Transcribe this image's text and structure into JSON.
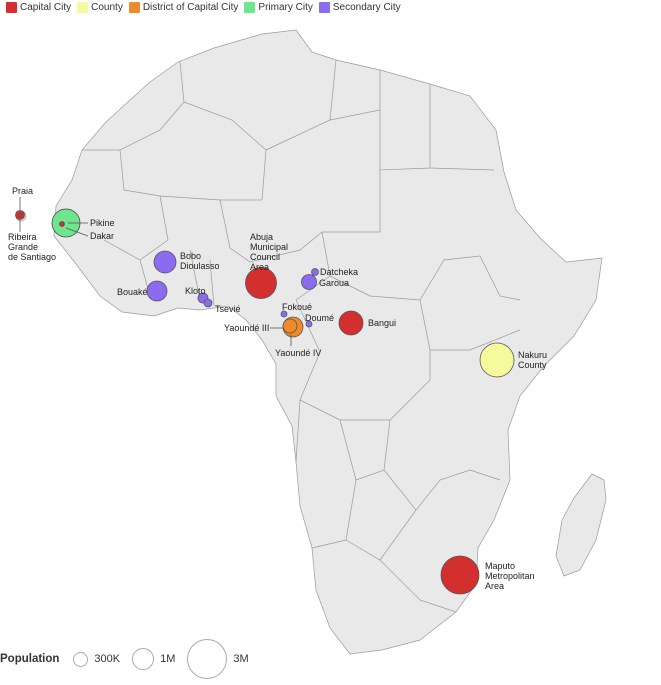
{
  "legend": [
    {
      "label": "Capital City",
      "color": "#d32f2f"
    },
    {
      "label": "County",
      "color": "#f6f99c"
    },
    {
      "label": "District of Capital City",
      "color": "#ef8a2a"
    },
    {
      "label": "Primary City",
      "color": "#6ee58e"
    },
    {
      "label": "Secondary City",
      "color": "#8b6cf0"
    }
  ],
  "cities": [
    {
      "lines": [
        "Praia"
      ],
      "category": "Capital City"
    },
    {
      "lines": [
        "Ribeira",
        "Grande",
        "de Santiago"
      ],
      "category": "Capital City"
    },
    {
      "lines": [
        "Pikine"
      ],
      "category": "Primary City"
    },
    {
      "lines": [
        "Dakar"
      ],
      "category": "Capital City"
    },
    {
      "lines": [
        "Bobo",
        "Dioulasso"
      ],
      "category": "Secondary City"
    },
    {
      "lines": [
        "Bouaké"
      ],
      "category": "Secondary City"
    },
    {
      "lines": [
        "Kloto"
      ],
      "category": "Secondary City"
    },
    {
      "lines": [
        "Tsevié"
      ],
      "category": "Secondary City"
    },
    {
      "lines": [
        "Abuja",
        "Municipal",
        "Council",
        "Area"
      ],
      "category": "Capital City"
    },
    {
      "lines": [
        "Datcheka"
      ],
      "category": "Secondary City"
    },
    {
      "lines": [
        "Garoua"
      ],
      "category": "Secondary City"
    },
    {
      "lines": [
        "Fokoué"
      ],
      "category": "Secondary City"
    },
    {
      "lines": [
        "Doumé"
      ],
      "category": "Secondary City"
    },
    {
      "lines": [
        "Yaoundé III"
      ],
      "category": "District of Capital City"
    },
    {
      "lines": [
        "Yaoundé IV"
      ],
      "category": "District of Capital City"
    },
    {
      "lines": [
        "Bangui"
      ],
      "category": "Capital City"
    },
    {
      "lines": [
        "Nakuru",
        "County"
      ],
      "category": "County"
    },
    {
      "lines": [
        "Maputo",
        "Metropolitan",
        "Area"
      ],
      "category": "Capital City"
    }
  ],
  "size_legend": {
    "title": "Population",
    "items": [
      {
        "label": "300K",
        "value": 300000
      },
      {
        "label": "1M",
        "value": 1000000
      },
      {
        "label": "3M",
        "value": 3000000
      }
    ]
  }
}
